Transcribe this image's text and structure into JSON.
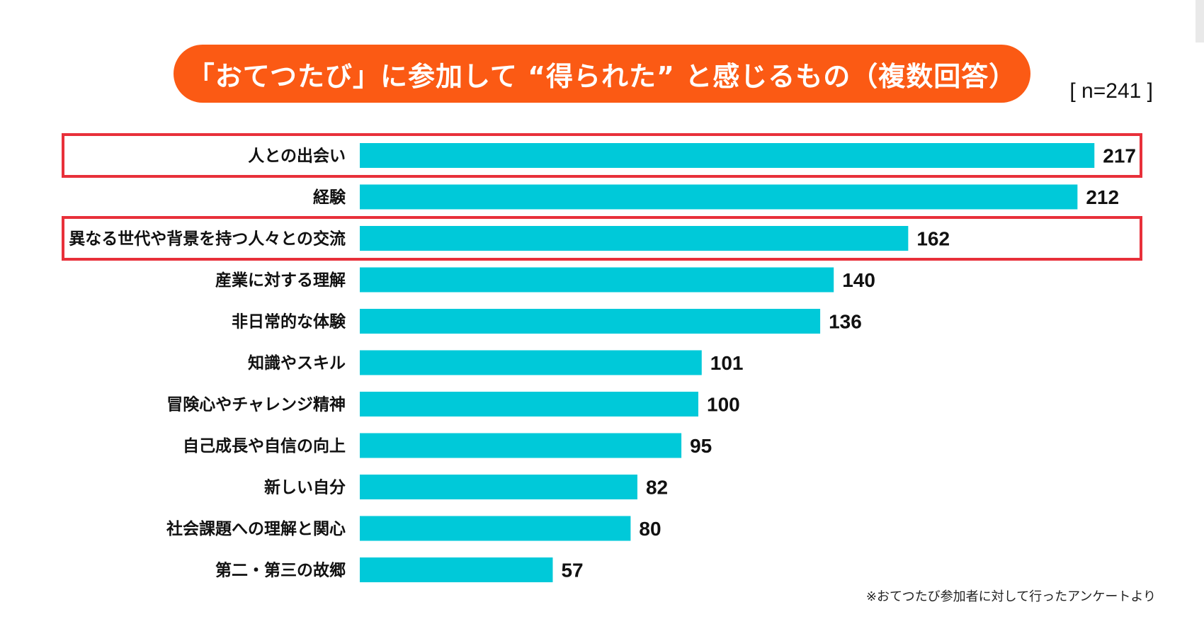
{
  "title": "「おてつたび」に参加して “得られた” と感じるもの（複数回答）",
  "sample_size": "[ n=241 ]",
  "footnote": "※おてつたび参加者に対して行ったアンケートより",
  "colors": {
    "bar": "#00c9d9",
    "title_bg": "#fb5a14",
    "highlight": "#e8303a"
  },
  "chart_data": {
    "type": "bar",
    "orientation": "horizontal",
    "categories": [
      "人との出会い",
      "経験",
      "異なる世代や背景を持つ人々との交流",
      "産業に対する理解",
      "非日常的な体験",
      "知識やスキル",
      "冒険心やチャレンジ精神",
      "自己成長や自信の向上",
      "新しい自分",
      "社会課題への理解と関心",
      "第二・第三の故郷"
    ],
    "values": [
      217,
      212,
      162,
      140,
      136,
      101,
      100,
      95,
      82,
      80,
      57
    ],
    "highlighted": [
      "人との出会い",
      "異なる世代や背景を持つ人々との交流"
    ],
    "data_labels": true,
    "grid": false
  }
}
